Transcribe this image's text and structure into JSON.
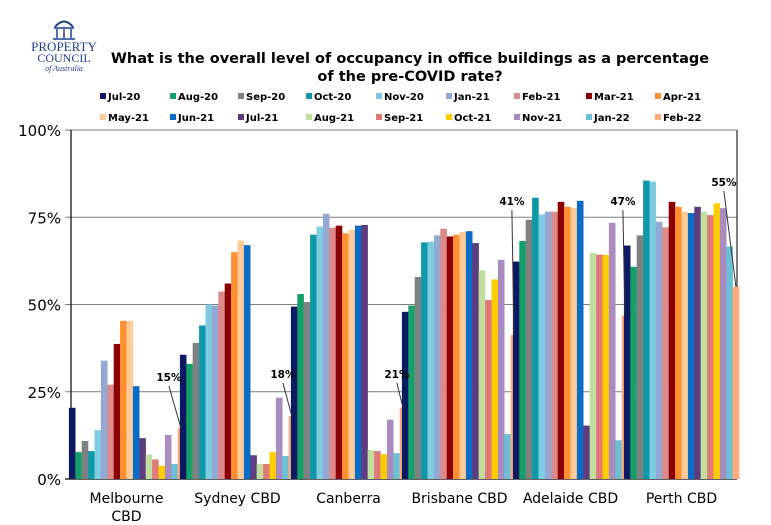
{
  "logo": {
    "line1": "PROPERTY",
    "line2": "COUNCIL",
    "line3": "of Australia"
  },
  "chart_data": {
    "type": "bar",
    "title": "What is the overall level of occupancy in office buildings as a percentage of the pre-COVID rate?",
    "title_lines": [
      "What is the overall level of occupancy in office buildings as a percentage",
      "of the pre-COVID rate?"
    ],
    "xlabel": "",
    "ylabel": "",
    "ylim": [
      0,
      100
    ],
    "yticks": [
      0,
      25,
      50,
      75,
      100
    ],
    "ytick_labels": [
      "0%",
      "25%",
      "50%",
      "75%",
      "100%"
    ],
    "grid": true,
    "legend_position": "top",
    "categories": [
      "Melbourne CBD",
      "Sydney CBD",
      "Canberra",
      "Brisbane CBD",
      "Adelaide CBD",
      "Perth CBD"
    ],
    "category_label_lines": [
      [
        "Melbourne",
        "CBD"
      ],
      [
        "Sydney CBD"
      ],
      [
        "Canberra"
      ],
      [
        "Brisbane CBD"
      ],
      [
        "Adelaide CBD"
      ],
      [
        "Perth CBD"
      ]
    ],
    "series": [
      {
        "name": "Jul-20",
        "color": "#0d1a63",
        "values": [
          20.4,
          35.6,
          49.4,
          47.9,
          62.3,
          66.9
        ]
      },
      {
        "name": "Aug-20",
        "color": "#14a06b",
        "values": [
          7.7,
          33.0,
          53.0,
          49.7,
          68.2,
          60.8
        ]
      },
      {
        "name": "Sep-20",
        "color": "#808080",
        "values": [
          10.9,
          39.0,
          50.7,
          57.9,
          74.3,
          69.8
        ]
      },
      {
        "name": "Oct-20",
        "color": "#0e98a8",
        "values": [
          8.0,
          44.0,
          70.0,
          67.8,
          80.6,
          85.5
        ]
      },
      {
        "name": "Nov-20",
        "color": "#7fcce0",
        "values": [
          14.0,
          50.0,
          72.3,
          68.0,
          75.8,
          85.2
        ]
      },
      {
        "name": "Jan-21",
        "color": "#94a8d4",
        "values": [
          33.9,
          49.7,
          76.0,
          69.8,
          76.6,
          73.7
        ]
      },
      {
        "name": "Feb-21",
        "color": "#de8a8a",
        "values": [
          27.0,
          53.7,
          72.0,
          71.7,
          76.6,
          72.1
        ]
      },
      {
        "name": "Mar-21",
        "color": "#8b0000",
        "values": [
          38.7,
          56.0,
          72.6,
          69.5,
          79.4,
          79.4
        ]
      },
      {
        "name": "Apr-21",
        "color": "#ff9030",
        "values": [
          45.3,
          65.0,
          70.4,
          70.0,
          78.0,
          78.0
        ]
      },
      {
        "name": "May-21",
        "color": "#ffcc99",
        "values": [
          45.3,
          68.3,
          71.4,
          70.8,
          77.7,
          76.6
        ]
      },
      {
        "name": "Jun-21",
        "color": "#0a6cc4",
        "values": [
          26.6,
          67.0,
          72.6,
          71.0,
          79.7,
          76.2
        ]
      },
      {
        "name": "Jul-21",
        "color": "#5e3c7e",
        "values": [
          11.7,
          6.8,
          72.8,
          67.6,
          15.3,
          78.0
        ]
      },
      {
        "name": "Aug-21",
        "color": "#c0dea0",
        "values": [
          7.0,
          4.3,
          8.3,
          59.8,
          64.8,
          76.6
        ]
      },
      {
        "name": "Sep-21",
        "color": "#e07a78",
        "values": [
          5.6,
          4.3,
          8.0,
          51.3,
          64.3,
          75.6
        ]
      },
      {
        "name": "Oct-21",
        "color": "#ffcc00",
        "values": [
          3.8,
          7.7,
          7.1,
          57.2,
          64.2,
          79.0
        ]
      },
      {
        "name": "Nov-21",
        "color": "#a98bbf",
        "values": [
          12.6,
          23.3,
          17.0,
          62.8,
          73.4,
          77.6
        ]
      },
      {
        "name": "Jan-22",
        "color": "#6cc0d6",
        "values": [
          4.3,
          6.6,
          7.4,
          12.9,
          11.1,
          66.6
        ]
      },
      {
        "name": "Feb-22",
        "color": "#ffaa77",
        "values": [
          14.6,
          18.0,
          20.5,
          41.3,
          46.8,
          55.1
        ]
      }
    ],
    "annotations": [
      {
        "text": "15%",
        "category": "Melbourne CBD",
        "series": "Feb-22"
      },
      {
        "text": "18%",
        "category": "Sydney CBD",
        "series": "Feb-22"
      },
      {
        "text": "21%",
        "category": "Canberra",
        "series": "Feb-22"
      },
      {
        "text": "41%",
        "category": "Brisbane CBD",
        "series": "Feb-22"
      },
      {
        "text": "47%",
        "category": "Adelaide CBD",
        "series": "Feb-22"
      },
      {
        "text": "55%",
        "category": "Perth CBD",
        "series": "Feb-22"
      }
    ]
  }
}
